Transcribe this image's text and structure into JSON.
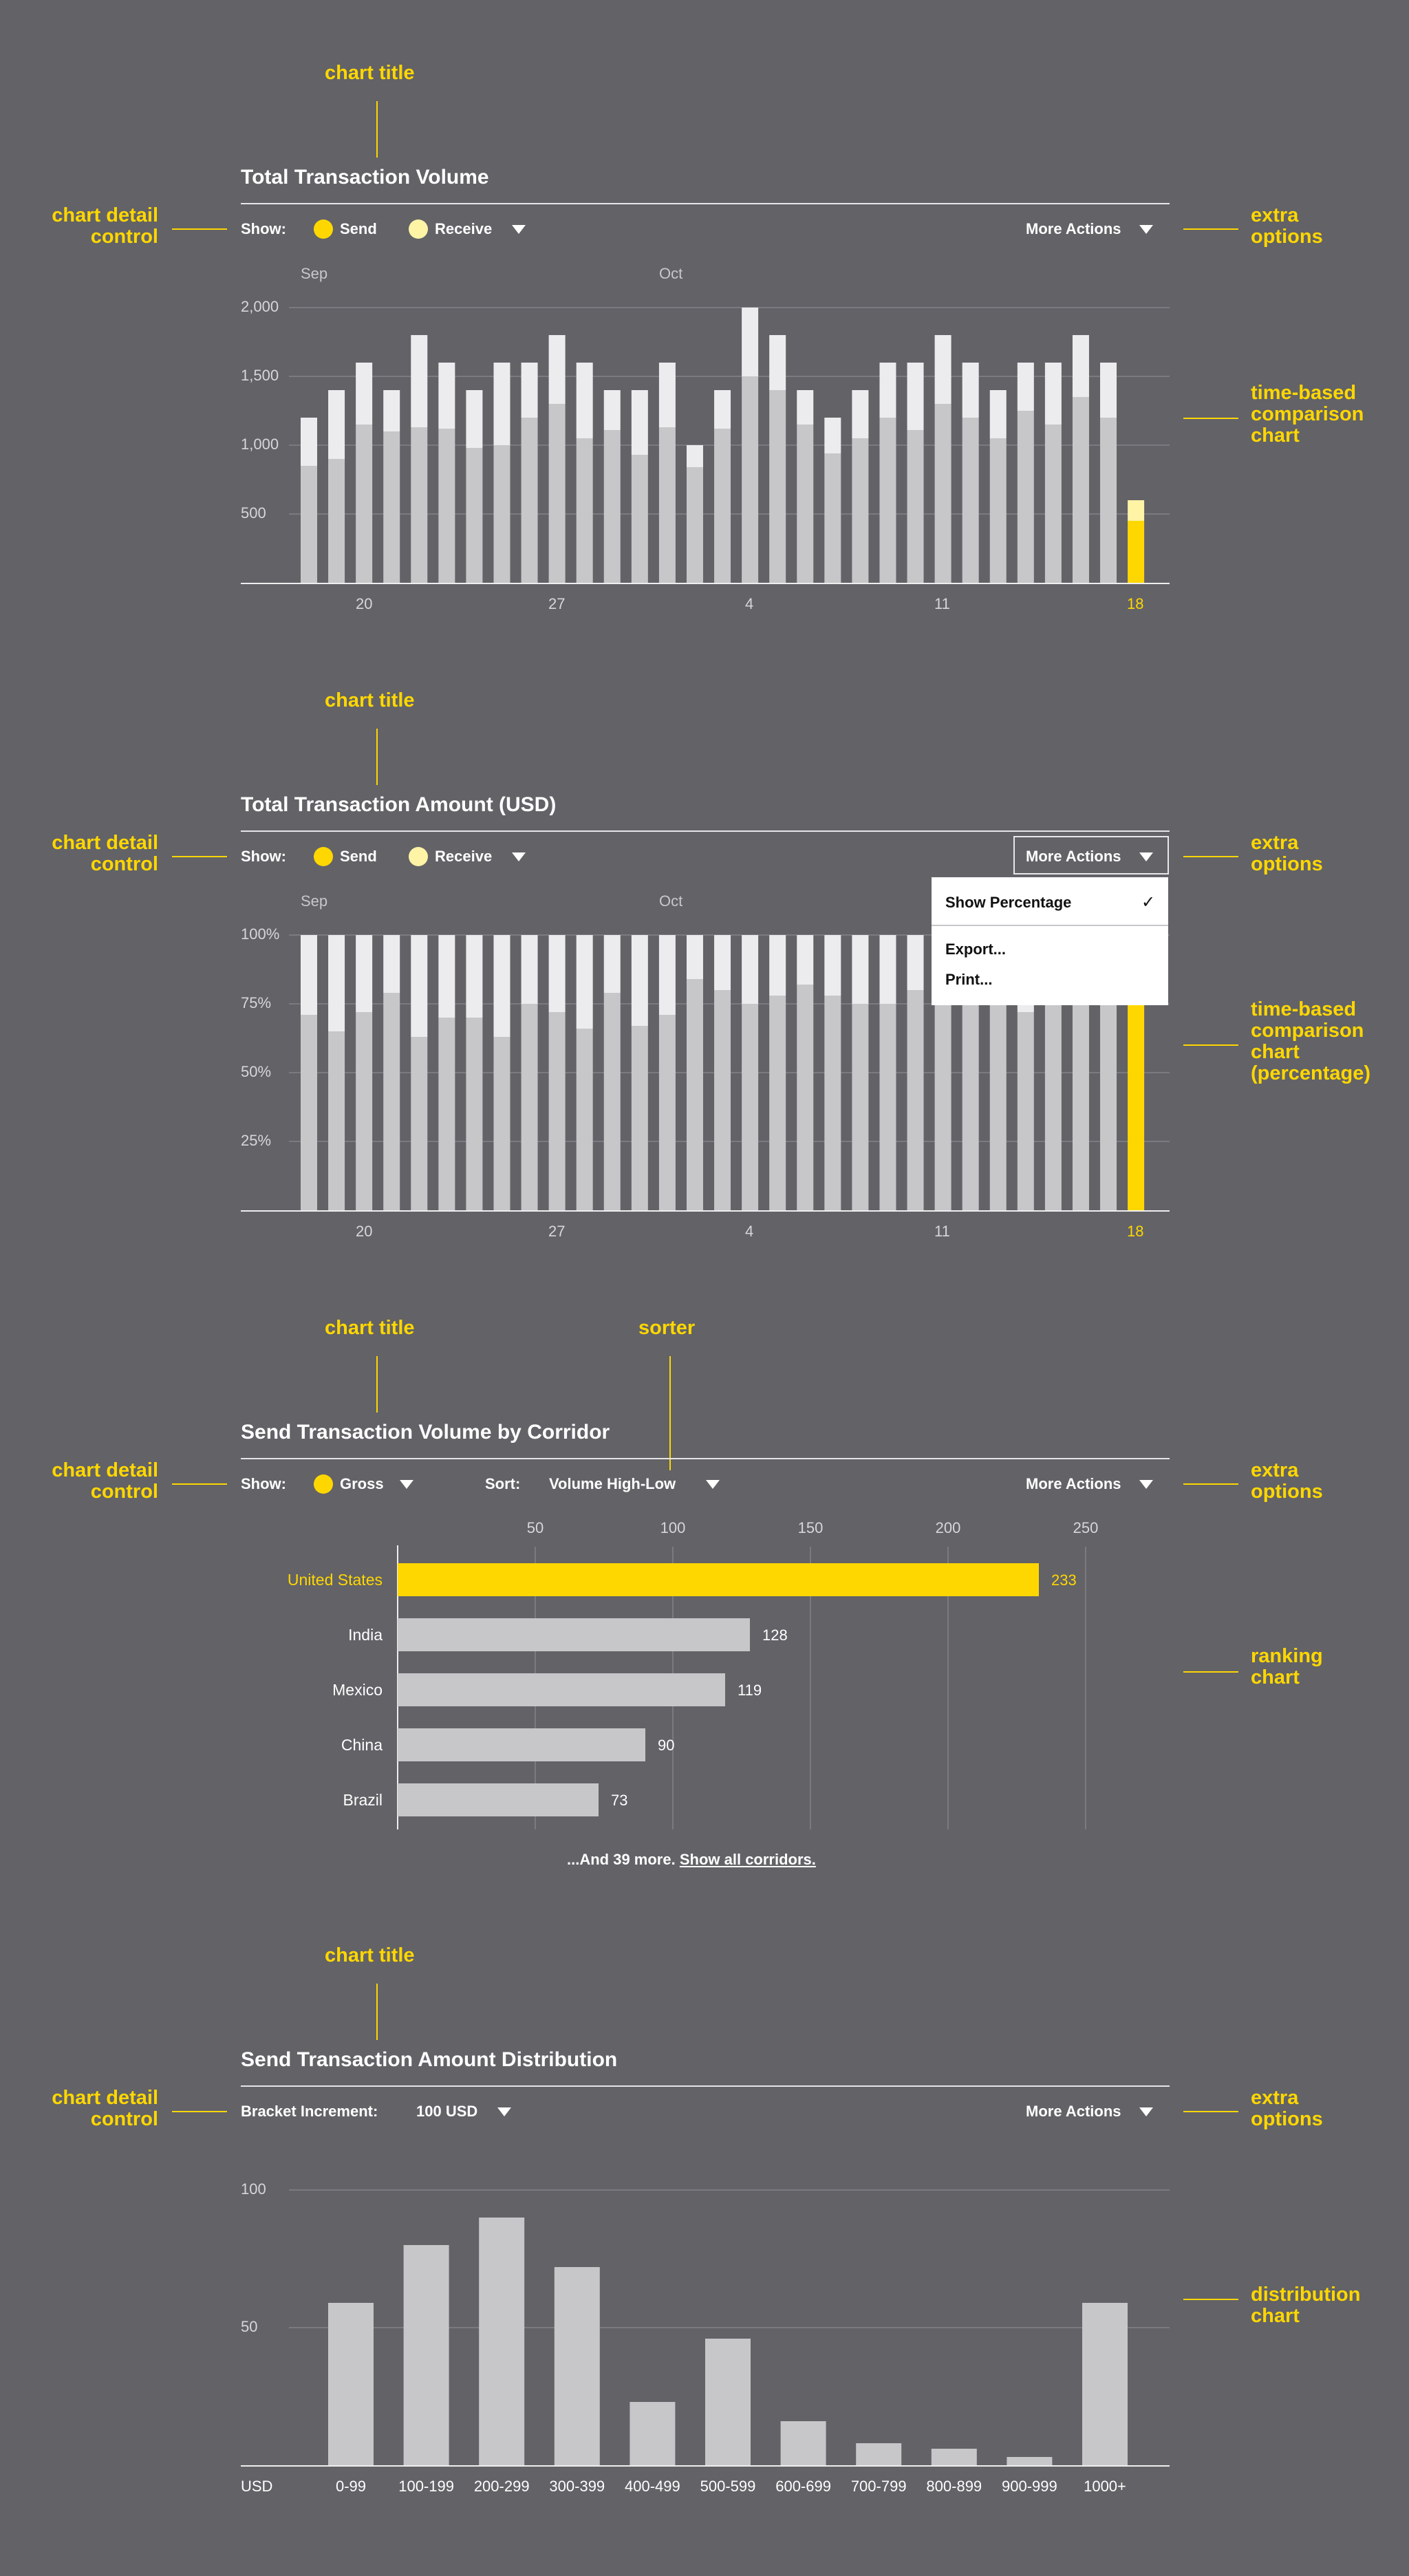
{
  "annotations": {
    "chart_title": "chart title",
    "chart_detail_control_1": "chart detail",
    "chart_detail_control_2": "control",
    "extra_options_1": "extra",
    "extra_options_2": "options",
    "sorter": "sorter",
    "time_based_1": "time-based",
    "time_based_2": "comparison",
    "time_based_3": "chart",
    "time_based_pct_4": "(percentage)",
    "ranking_1": "ranking",
    "ranking_2": "chart",
    "distribution_1": "distribution",
    "distribution_2": "chart"
  },
  "colors": {
    "background": "#626267",
    "accent": "#ffd700",
    "accent_light": "#fff3a6",
    "send_bar": "#c7c7ca",
    "receive_bar": "#ececee",
    "grid": "#7a7a80"
  },
  "controls": {
    "show_label": "Show:",
    "send_label": "Send",
    "receive_label": "Receive",
    "gross_label": "Gross",
    "sort_label": "Sort:",
    "sort_value": "Volume High-Low",
    "more_actions": "More Actions",
    "bracket_label": "Bracket Increment:",
    "bracket_value": "100 USD"
  },
  "menu": {
    "show_percentage": "Show Percentage",
    "check": "✓",
    "export": "Export...",
    "print": "Print..."
  },
  "ranking_footer": {
    "text": "...And 39 more.",
    "link": "Show all corridors."
  },
  "chart_data": [
    {
      "type": "bar",
      "title": "Total Transaction Volume",
      "stacked": true,
      "months": [
        "Sep",
        "Oct"
      ],
      "x_tick_labels": [
        "20",
        "27",
        "4",
        "11",
        "18"
      ],
      "y_tick_labels": [
        "2,000",
        "1,500",
        "1,000",
        "500"
      ],
      "ylim": [
        0,
        2000
      ],
      "grid": true,
      "series": [
        {
          "name": "Send",
          "values": [
            850,
            900,
            1150,
            1100,
            1130,
            1120,
            980,
            1000,
            1200,
            1300,
            1050,
            1110,
            930,
            1130,
            840,
            1120,
            1500,
            1400,
            1150,
            940,
            1050,
            1200,
            1110,
            1300,
            1200,
            1050,
            1250,
            1150,
            1350,
            1200,
            450
          ]
        },
        {
          "name": "Receive",
          "values": [
            350,
            500,
            450,
            300,
            670,
            480,
            420,
            600,
            400,
            500,
            550,
            290,
            470,
            470,
            160,
            280,
            500,
            400,
            250,
            260,
            350,
            400,
            490,
            500,
            400,
            350,
            350,
            450,
            450,
            400,
            150
          ]
        }
      ]
    },
    {
      "type": "bar",
      "title": "Total Transaction Amount (USD)",
      "stacked": true,
      "months": [
        "Sep",
        "Oct"
      ],
      "x_tick_labels": [
        "20",
        "27",
        "4",
        "11",
        "18"
      ],
      "y_tick_labels": [
        "100%",
        "75%",
        "50%",
        "25%"
      ],
      "ylim": [
        0,
        100
      ],
      "grid": true,
      "series": [
        {
          "name": "Send",
          "values": [
            71,
            65,
            72,
            79,
            63,
            70,
            70,
            63,
            75,
            72,
            66,
            79,
            67,
            71,
            84,
            80,
            75,
            78,
            82,
            78,
            75,
            75,
            80,
            75,
            75,
            75,
            72,
            75,
            75,
            75,
            100
          ]
        },
        {
          "name": "Receive",
          "values": [
            29,
            35,
            28,
            21,
            37,
            30,
            30,
            37,
            25,
            28,
            34,
            21,
            33,
            29,
            16,
            20,
            25,
            22,
            18,
            22,
            25,
            25,
            20,
            25,
            25,
            25,
            28,
            25,
            25,
            25,
            0
          ]
        }
      ]
    },
    {
      "type": "bar",
      "orientation": "horizontal",
      "title": "Send Transaction Volume by Corridor",
      "categories": [
        "United States",
        "India",
        "Mexico",
        "China",
        "Brazil"
      ],
      "values": [
        233,
        128,
        119,
        90,
        73
      ],
      "x_tick_labels": [
        "50",
        "100",
        "150",
        "200",
        "250"
      ],
      "xlim": [
        0,
        280
      ],
      "grid": true
    },
    {
      "type": "bar",
      "title": "Send Transaction Amount Distribution",
      "xlabel": "USD",
      "categories": [
        "0-99",
        "100-199",
        "200-299",
        "300-399",
        "400-499",
        "500-599",
        "600-699",
        "700-799",
        "800-899",
        "900-999",
        "1000+"
      ],
      "values": [
        59,
        80,
        90,
        72,
        23,
        46,
        16,
        8,
        6,
        3,
        59
      ],
      "y_tick_labels": [
        "100",
        "50"
      ],
      "ylim": [
        0,
        100
      ],
      "grid": true
    }
  ]
}
